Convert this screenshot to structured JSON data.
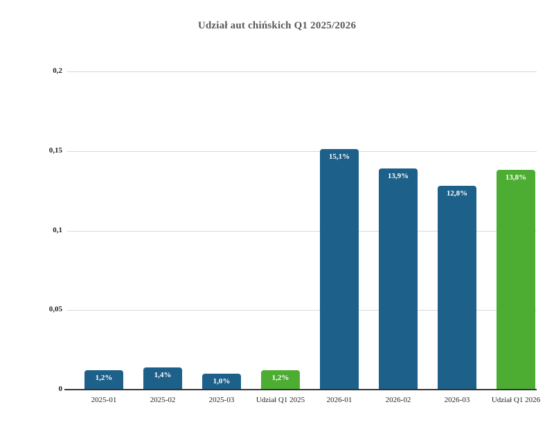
{
  "page": {
    "background": "#ffffff"
  },
  "chart_data": {
    "type": "bar",
    "title": "Udział aut chińskich Q1 2025/2026",
    "categories": [
      "2025-01",
      "2025-02",
      "2025-03",
      "Udział Q1 2025",
      "2026-01",
      "2026-02",
      "2026-03",
      "Udział Q1 2026"
    ],
    "values": [
      0.012,
      0.014,
      0.01,
      0.012,
      0.151,
      0.139,
      0.128,
      0.138
    ],
    "value_labels": [
      "1,2%",
      "1,4%",
      "1,0%",
      "1,2%",
      "15,1%",
      "13,9%",
      "12,8%",
      "13,8%"
    ],
    "bar_colors": [
      "#1d6089",
      "#1d6089",
      "#1d6089",
      "#4dad33",
      "#1d6089",
      "#1d6089",
      "#1d6089",
      "#4dad33"
    ],
    "xlabel": "",
    "ylabel": "",
    "ylim": [
      0,
      0.2
    ],
    "yticks": [
      0,
      0.05,
      0.1,
      0.15,
      0.2
    ],
    "ytick_labels": [
      "0",
      "0,05",
      "0,1",
      "0,15",
      "0,2"
    ],
    "grid": true,
    "legend": false
  },
  "colors": {
    "series_blue": "#1d6089",
    "series_green": "#4dad33",
    "title_text": "#595959",
    "tick_text": "#1f1f1f",
    "grid_line": "#d9d9d9",
    "axis_line": "#333333",
    "value_label_text": "#ffffff"
  }
}
